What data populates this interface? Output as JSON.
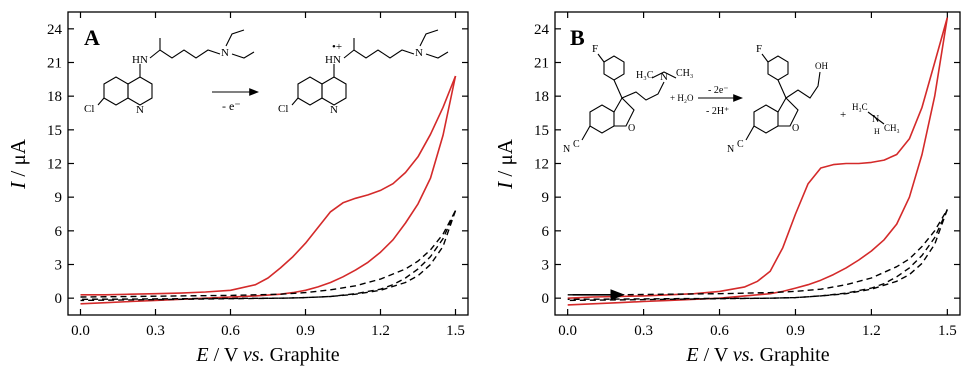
{
  "chart_data": [
    {
      "type": "line",
      "panel_label": "A",
      "xlabel": {
        "var": "E",
        "rest": " / V ",
        "em": "vs.",
        "tail": " Graphite"
      },
      "ylabel": {
        "var": "I",
        "rest": " / μA"
      },
      "xlim": [
        -0.05,
        1.55
      ],
      "ylim": [
        -1.5,
        25.5
      ],
      "xticks": [
        "0.0",
        "0.3",
        "0.6",
        "0.9",
        "1.2",
        "1.5"
      ],
      "yticks": [
        "0",
        "3",
        "6",
        "9",
        "12",
        "15",
        "18",
        "21",
        "24"
      ],
      "grid": false,
      "legend": "none",
      "scheme": {
        "left_labels": [
          "HN",
          "Cl",
          "N",
          "N"
        ],
        "right_labels": [
          "HN",
          "Cl",
          "N",
          "N"
        ],
        "arrow_label": "- e⁻",
        "radical_mark": "•+"
      },
      "series": [
        {
          "style": "solid",
          "color": "#d42a2a",
          "segment": "forward",
          "x": [
            0.0,
            0.1,
            0.2,
            0.3,
            0.4,
            0.5,
            0.6,
            0.7,
            0.75,
            0.8,
            0.85,
            0.9,
            0.95,
            1.0,
            1.05,
            1.1,
            1.15,
            1.2,
            1.25,
            1.3,
            1.35,
            1.4,
            1.45,
            1.5
          ],
          "y": [
            0.3,
            0.3,
            0.35,
            0.4,
            0.45,
            0.55,
            0.7,
            1.2,
            1.8,
            2.7,
            3.7,
            4.9,
            6.3,
            7.7,
            8.5,
            8.9,
            9.2,
            9.6,
            10.2,
            11.2,
            12.6,
            14.6,
            17.0,
            19.8
          ]
        },
        {
          "style": "solid",
          "color": "#d42a2a",
          "segment": "reverse",
          "x": [
            1.5,
            1.45,
            1.4,
            1.35,
            1.3,
            1.25,
            1.2,
            1.15,
            1.1,
            1.05,
            1.0,
            0.95,
            0.9,
            0.85,
            0.8,
            0.7,
            0.6,
            0.5,
            0.4,
            0.3,
            0.2,
            0.1,
            0.0
          ],
          "y": [
            19.8,
            14.5,
            10.7,
            8.4,
            6.7,
            5.2,
            4.1,
            3.2,
            2.5,
            1.9,
            1.4,
            1.0,
            0.7,
            0.5,
            0.35,
            0.2,
            0.1,
            0.0,
            -0.1,
            -0.2,
            -0.3,
            -0.4,
            -0.5
          ]
        },
        {
          "style": "dashed",
          "color": "#000000",
          "segment": "forward",
          "x": [
            0.0,
            0.2,
            0.4,
            0.6,
            0.8,
            0.9,
            1.0,
            1.1,
            1.2,
            1.3,
            1.35,
            1.4,
            1.45,
            1.5
          ],
          "y": [
            0.1,
            0.15,
            0.2,
            0.25,
            0.35,
            0.5,
            0.75,
            1.1,
            1.7,
            2.6,
            3.3,
            4.3,
            5.7,
            7.8
          ]
        },
        {
          "style": "dashed",
          "color": "#000000",
          "segment": "reverse",
          "x": [
            1.5,
            1.45,
            1.4,
            1.35,
            1.3,
            1.25,
            1.2,
            1.1,
            1.0,
            0.9,
            0.8,
            0.6,
            0.4,
            0.2,
            0.0
          ],
          "y": [
            7.8,
            5.3,
            3.7,
            2.6,
            1.8,
            1.2,
            0.8,
            0.4,
            0.15,
            0.05,
            0.0,
            -0.05,
            -0.1,
            -0.15,
            -0.2
          ]
        },
        {
          "style": "dashed",
          "color": "#000000",
          "segment": "reverse-inner",
          "x": [
            1.5,
            1.45,
            1.4,
            1.35,
            1.3,
            1.2,
            1.1,
            1.0,
            0.9,
            0.8,
            0.6,
            0.4,
            0.2,
            0.0
          ],
          "y": [
            7.8,
            4.6,
            3.0,
            2.0,
            1.4,
            0.7,
            0.35,
            0.15,
            0.05,
            0.0,
            -0.02,
            -0.05,
            -0.08,
            -0.1
          ]
        }
      ]
    },
    {
      "type": "line",
      "panel_label": "B",
      "xlabel": {
        "var": "E",
        "rest": " / V ",
        "em": "vs.",
        "tail": " Graphite"
      },
      "ylabel": {
        "var": "I",
        "rest": " / μA"
      },
      "xlim": [
        -0.05,
        1.55
      ],
      "ylim": [
        -1.5,
        25.5
      ],
      "xticks": [
        "0.0",
        "0.3",
        "0.6",
        "0.9",
        "1.2",
        "1.5"
      ],
      "yticks": [
        "0",
        "3",
        "6",
        "9",
        "12",
        "15",
        "18",
        "21",
        "24"
      ],
      "grid": false,
      "legend": "none",
      "scheme": {
        "left_labels": [
          "F",
          "N",
          "H₃C",
          "CH₃",
          "O",
          "N",
          "C"
        ],
        "plus_water": "+ H₂O",
        "arrow_top": "- 2e⁻",
        "arrow_bottom": "- 2H⁺",
        "right_labels": [
          "F",
          "OH",
          "O",
          "N",
          "C"
        ],
        "plus": "+",
        "amine": [
          "H₃C",
          "N",
          "CH₃",
          "H"
        ]
      },
      "series": [
        {
          "style": "solid",
          "color": "#d42a2a",
          "segment": "forward",
          "x": [
            0.0,
            0.1,
            0.2,
            0.3,
            0.4,
            0.5,
            0.6,
            0.7,
            0.75,
            0.8,
            0.85,
            0.9,
            0.95,
            1.0,
            1.05,
            1.1,
            1.15,
            1.2,
            1.25,
            1.3,
            1.35,
            1.4,
            1.45,
            1.5
          ],
          "y": [
            0.0,
            0.1,
            0.15,
            0.2,
            0.3,
            0.4,
            0.6,
            1.0,
            1.5,
            2.4,
            4.5,
            7.5,
            10.2,
            11.6,
            11.9,
            12.0,
            12.0,
            12.1,
            12.3,
            12.8,
            14.2,
            17.0,
            21.0,
            25.0
          ]
        },
        {
          "style": "solid",
          "color": "#d42a2a",
          "segment": "reverse",
          "x": [
            1.5,
            1.45,
            1.4,
            1.35,
            1.3,
            1.25,
            1.2,
            1.15,
            1.1,
            1.05,
            1.0,
            0.95,
            0.9,
            0.85,
            0.8,
            0.7,
            0.6,
            0.5,
            0.4,
            0.3,
            0.2,
            0.1,
            0.0
          ],
          "y": [
            25.0,
            18.0,
            12.8,
            9.0,
            6.6,
            5.2,
            4.2,
            3.4,
            2.7,
            2.1,
            1.6,
            1.2,
            0.9,
            0.6,
            0.4,
            0.2,
            0.0,
            -0.1,
            -0.2,
            -0.3,
            -0.4,
            -0.5,
            -0.6
          ]
        },
        {
          "style": "dashed",
          "color": "#000000",
          "segment": "forward",
          "x": [
            0.0,
            0.2,
            0.4,
            0.6,
            0.8,
            0.9,
            1.0,
            1.1,
            1.2,
            1.3,
            1.35,
            1.4,
            1.45,
            1.5
          ],
          "y": [
            0.3,
            0.3,
            0.35,
            0.4,
            0.5,
            0.6,
            0.8,
            1.2,
            1.8,
            2.8,
            3.5,
            4.6,
            6.0,
            7.9
          ]
        },
        {
          "style": "dashed",
          "color": "#000000",
          "segment": "reverse",
          "x": [
            1.5,
            1.45,
            1.4,
            1.35,
            1.3,
            1.25,
            1.2,
            1.1,
            1.0,
            0.9,
            0.8,
            0.6,
            0.4,
            0.2,
            0.0
          ],
          "y": [
            7.9,
            5.4,
            3.8,
            2.7,
            1.9,
            1.3,
            0.9,
            0.45,
            0.2,
            0.05,
            0.0,
            -0.05,
            -0.1,
            -0.15,
            -0.2
          ]
        },
        {
          "style": "dashed",
          "color": "#000000",
          "segment": "reverse-inner",
          "x": [
            1.5,
            1.45,
            1.4,
            1.35,
            1.3,
            1.2,
            1.1,
            1.0,
            0.9,
            0.8,
            0.6,
            0.4,
            0.2,
            0.0
          ],
          "y": [
            7.9,
            4.8,
            3.1,
            2.1,
            1.5,
            0.8,
            0.4,
            0.2,
            0.05,
            0.0,
            -0.02,
            -0.05,
            -0.08,
            -0.1
          ]
        },
        {
          "style": "solid",
          "color": "#000000",
          "segment": "start-arrow",
          "x": [
            0.02,
            0.22
          ],
          "y": [
            0.3,
            0.3
          ]
        }
      ]
    }
  ]
}
